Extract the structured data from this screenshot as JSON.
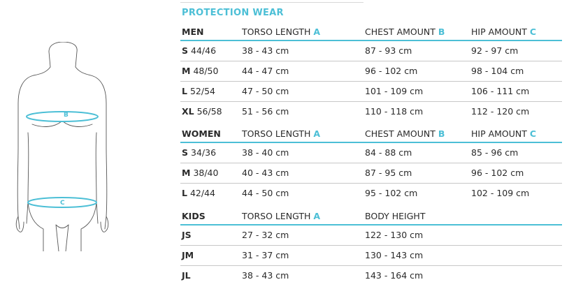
{
  "title": "PROTECTION WEAR",
  "figure": {
    "label_b": "B",
    "label_c": "C"
  },
  "men": {
    "header": {
      "group": "MEN",
      "col_a": "TORSO LENGTH",
      "col_a_letter": "A",
      "col_b": "CHEST AMOUNT",
      "col_b_letter": "B",
      "col_c": "HIP AMOUNT",
      "col_c_letter": "C"
    },
    "rows": [
      {
        "size": "S",
        "num": "44/46",
        "a": "38 - 43 cm",
        "b": "87 - 93 cm",
        "c": "92 - 97 cm"
      },
      {
        "size": "M",
        "num": "48/50",
        "a": "44 - 47 cm",
        "b": "96 - 102 cm",
        "c": "98 - 104 cm"
      },
      {
        "size": "L",
        "num": "52/54",
        "a": "47 - 50 cm",
        "b": "101 - 109 cm",
        "c": "106 - 111 cm"
      },
      {
        "size": "XL",
        "num": "56/58",
        "a": "51 - 56 cm",
        "b": "110 - 118 cm",
        "c": "112 - 120 cm"
      }
    ]
  },
  "women": {
    "header": {
      "group": "WOMEN",
      "col_a": "TORSO LENGTH",
      "col_a_letter": "A",
      "col_b": "CHEST AMOUNT",
      "col_b_letter": "B",
      "col_c": "HIP AMOUNT",
      "col_c_letter": "C"
    },
    "rows": [
      {
        "size": "S",
        "num": "34/36",
        "a": "38 - 40 cm",
        "b": "84 - 88 cm",
        "c": "85 - 96 cm"
      },
      {
        "size": "M",
        "num": "38/40",
        "a": "40 - 43 cm",
        "b": "87 - 95 cm",
        "c": "96 - 102 cm"
      },
      {
        "size": "L",
        "num": "42/44",
        "a": "44 - 50 cm",
        "b": "95 - 102 cm",
        "c": "102 - 109 cm"
      }
    ]
  },
  "kids": {
    "header": {
      "group": "KIDS",
      "col_a": "TORSO LENGTH",
      "col_a_letter": "A",
      "col_b": "BODY HEIGHT"
    },
    "rows": [
      {
        "size": "JS",
        "a": "27 - 32 cm",
        "b": "122 - 130 cm"
      },
      {
        "size": "JM",
        "a": "31 - 37 cm",
        "b": "130 - 143 cm"
      },
      {
        "size": "JL",
        "a": "38 - 43 cm",
        "b": "143 - 164 cm"
      }
    ]
  },
  "colors": {
    "accent": "#4cbfd6",
    "text": "#2a2a2a",
    "rule": "#c7c7c7"
  }
}
